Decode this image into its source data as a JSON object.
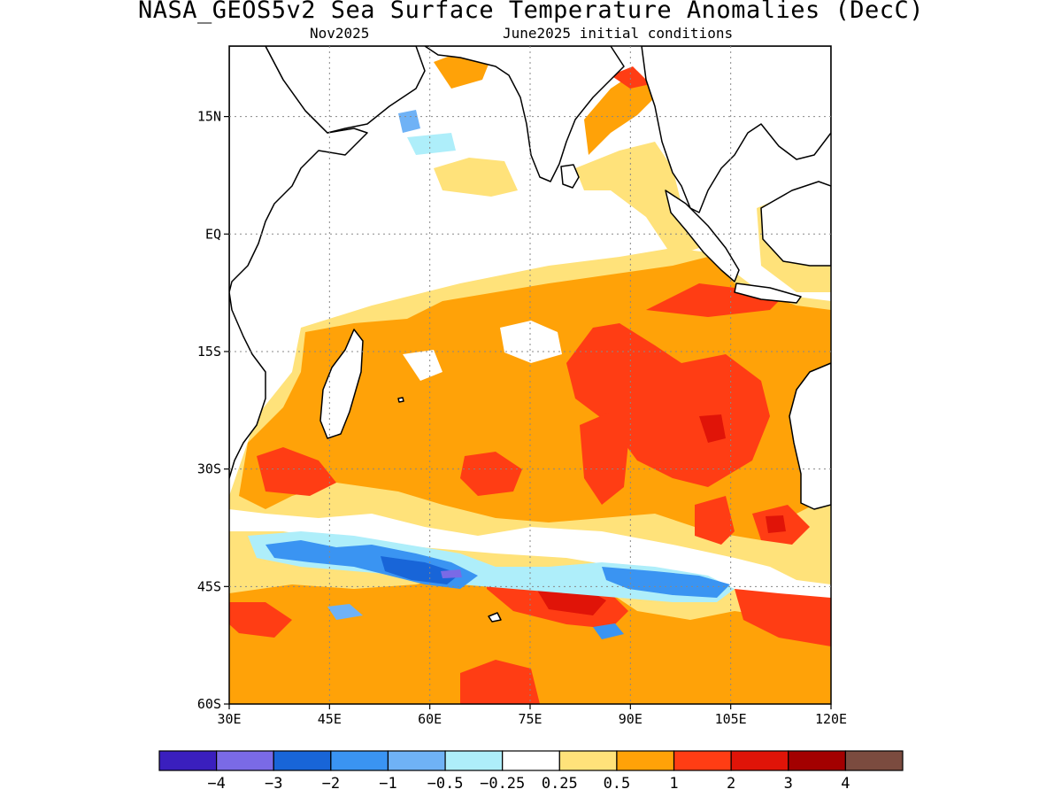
{
  "title": "NASA_GEOS5v2 Sea Surface Temperature Anomalies (DecC)",
  "subtitle_left": "Nov2025",
  "subtitle_right": "June2025 initial conditions",
  "map": {
    "lon_range": [
      30,
      120
    ],
    "lat_range": [
      -60,
      24
    ],
    "x_ticks": [
      {
        "value": 30,
        "label": "30E"
      },
      {
        "value": 45,
        "label": "45E"
      },
      {
        "value": 60,
        "label": "60E"
      },
      {
        "value": 75,
        "label": "75E"
      },
      {
        "value": 90,
        "label": "90E"
      },
      {
        "value": 105,
        "label": "105E"
      },
      {
        "value": 120,
        "label": "120E"
      }
    ],
    "y_ticks": [
      {
        "value": 15,
        "label": "15N"
      },
      {
        "value": 0,
        "label": "EQ"
      },
      {
        "value": -15,
        "label": "15S"
      },
      {
        "value": -30,
        "label": "30S"
      },
      {
        "value": -45,
        "label": "45S"
      },
      {
        "value": -60,
        "label": "60S"
      }
    ],
    "grid": true
  },
  "colorbar": {
    "colors": [
      "#3a1fbe",
      "#7a6ae6",
      "#1865d8",
      "#3a94f2",
      "#6fb2f6",
      "#aeeefa",
      "#ffffff",
      "#ffe27a",
      "#ffa208",
      "#ff3d14",
      "#e01408",
      "#a30000",
      "#7b4b3f"
    ],
    "labels": [
      "-4",
      "-3",
      "-2",
      "-1",
      "-0.5",
      "-0.25",
      "0.25",
      "0.5",
      "1",
      "2",
      "3",
      "4"
    ]
  },
  "legend": {
    "display": [
      "−4",
      "−3",
      "−2",
      "−1",
      "−0.5",
      "−0.25",
      "0.25",
      "0.5",
      "1",
      "2",
      "3",
      "4"
    ]
  }
}
